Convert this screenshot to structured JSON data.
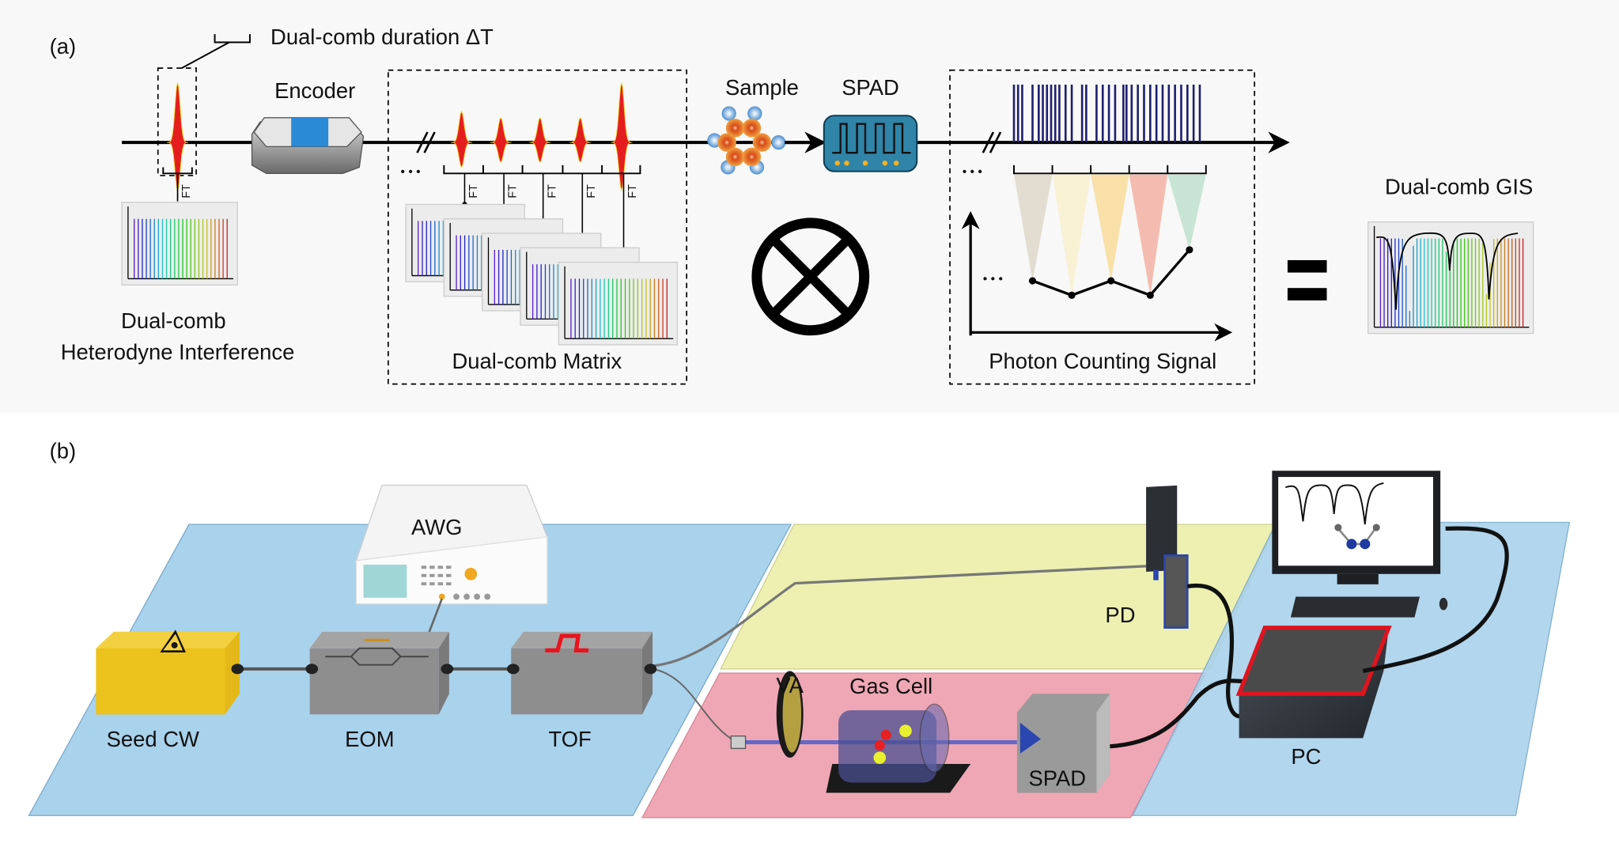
{
  "panel_a": {
    "tag": "(a)",
    "duration_label": "Dual-comb duration ΔT",
    "encoder_label": "Encoder",
    "sample_label": "Sample",
    "spad_label": "SPAD",
    "ft_label": "FT",
    "ellipsis": "• • •",
    "interference_label_line1": "Dual-comb",
    "interference_label_line2": "Heterodyne Interference",
    "matrix_label": "Dual-comb Matrix",
    "photon_label": "Photon Counting Signal",
    "gis_label": "Dual-comb GIS",
    "operator_icon": "circled-times-icon",
    "equals_icon": "equals-icon",
    "pulse_color": "#e41e1e",
    "spad_chip_color": "#2f84a8",
    "cone_colors": [
      "#e2ddd0",
      "#f8f1d4",
      "#f8e0a8",
      "#f4bcb0",
      "#c8e4d4"
    ]
  },
  "panel_b": {
    "tag": "(b)",
    "awg_label": "AWG",
    "seed_label": "Seed CW",
    "eom_label": "EOM",
    "tof_label": "TOF",
    "pd_label": "PD",
    "va_label": "VA",
    "gascell_label": "Gas Cell",
    "spad_label": "SPAD",
    "pc_label": "PC",
    "plane_colors": {
      "blue": "#a9d2ec",
      "yellow": "#ecefa8",
      "pink": "#f0a3b2"
    },
    "seed_color": "#ecc21c",
    "module_color": "#8e8e8e",
    "pc_accent": "#e0141e"
  }
}
